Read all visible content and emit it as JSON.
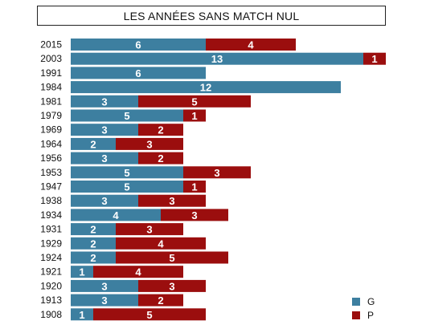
{
  "chart_data": {
    "type": "bar",
    "stacked": true,
    "orientation": "horizontal",
    "title": "LES ANNÉES SANS MATCH NUL",
    "categories": [
      "2015",
      "2003",
      "1991",
      "1984",
      "1981",
      "1979",
      "1969",
      "1964",
      "1956",
      "1953",
      "1947",
      "1938",
      "1934",
      "1931",
      "1929",
      "1924",
      "1921",
      "1920",
      "1913",
      "1908"
    ],
    "series": [
      {
        "name": "G",
        "color": "#3d7fa0",
        "values": [
          6,
          13,
          6,
          12,
          3,
          5,
          3,
          2,
          3,
          5,
          5,
          3,
          4,
          2,
          2,
          2,
          1,
          3,
          3,
          1
        ]
      },
      {
        "name": "P",
        "color": "#9b0e0e",
        "values": [
          4,
          1,
          0,
          0,
          5,
          1,
          2,
          3,
          2,
          3,
          1,
          3,
          3,
          3,
          4,
          5,
          4,
          3,
          2,
          5
        ]
      }
    ],
    "xlim": [
      0,
      14
    ],
    "grid": false,
    "legend": "bottom-right"
  }
}
